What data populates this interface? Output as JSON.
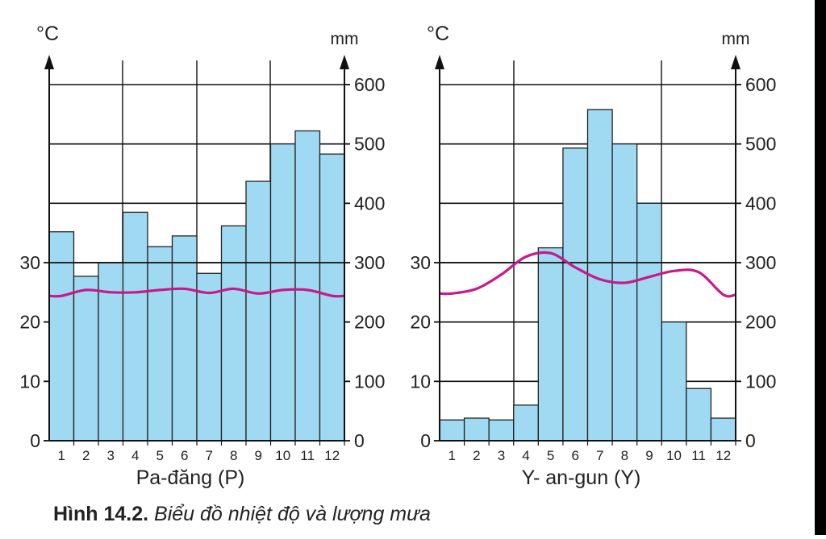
{
  "colors": {
    "bar_fill": "#9fd9f2",
    "bar_stroke": "#222222",
    "temperature_line": "#c8198a",
    "axis": "#111111"
  },
  "chart_data": [
    {
      "type": "bar",
      "title": "Pa-đăng (P)",
      "categories": [
        "1",
        "2",
        "3",
        "4",
        "5",
        "6",
        "7",
        "8",
        "9",
        "10",
        "11",
        "12"
      ],
      "series": [
        {
          "name": "",
          "kind": "bar",
          "axis": "right",
          "unit": "mm",
          "values": [
            352,
            277,
            300,
            385,
            327,
            345,
            282,
            362,
            437,
            500,
            522,
            483
          ]
        },
        {
          "name": "",
          "kind": "line",
          "axis": "left",
          "unit": "°C",
          "values": [
            24.4,
            25.4,
            25.0,
            25.0,
            25.4,
            25.6,
            24.9,
            25.6,
            24.8,
            25.4,
            25.4,
            24.4
          ]
        }
      ],
      "left_axis": {
        "label": "°C",
        "ticks": [
          0,
          10,
          20,
          30
        ],
        "range": [
          0,
          60
        ]
      },
      "right_axis": {
        "label": "mm",
        "ticks": [
          0,
          100,
          200,
          300,
          400,
          500,
          600
        ],
        "range": [
          0,
          600
        ]
      },
      "grid": true,
      "xlabel": "",
      "ylabel": "°C"
    },
    {
      "type": "bar",
      "title": "Y- an-gun (Y)",
      "categories": [
        "1",
        "2",
        "3",
        "4",
        "5",
        "6",
        "7",
        "8",
        "9",
        "10",
        "11",
        "12"
      ],
      "series": [
        {
          "name": "",
          "kind": "bar",
          "axis": "right",
          "unit": "mm",
          "values": [
            35,
            38,
            35,
            60,
            325,
            493,
            558,
            500,
            400,
            200,
            88,
            38
          ]
        },
        {
          "name": "",
          "kind": "line",
          "axis": "left",
          "unit": "°C",
          "values": [
            24.8,
            25.6,
            28.0,
            31.0,
            31.6,
            29.2,
            27.2,
            26.6,
            27.6,
            28.6,
            28.4,
            24.6
          ]
        }
      ],
      "left_axis": {
        "label": "°C",
        "ticks": [
          0,
          10,
          20,
          30
        ],
        "range": [
          0,
          60
        ]
      },
      "right_axis": {
        "label": "mm",
        "ticks": [
          0,
          100,
          200,
          300,
          400,
          500,
          600
        ],
        "range": [
          0,
          600
        ]
      },
      "grid": true,
      "xlabel": "",
      "ylabel": "°C"
    }
  ],
  "caption": {
    "number": "Hình 14.2.",
    "text": "Biểu đồ nhiệt độ và lượng mưa"
  }
}
